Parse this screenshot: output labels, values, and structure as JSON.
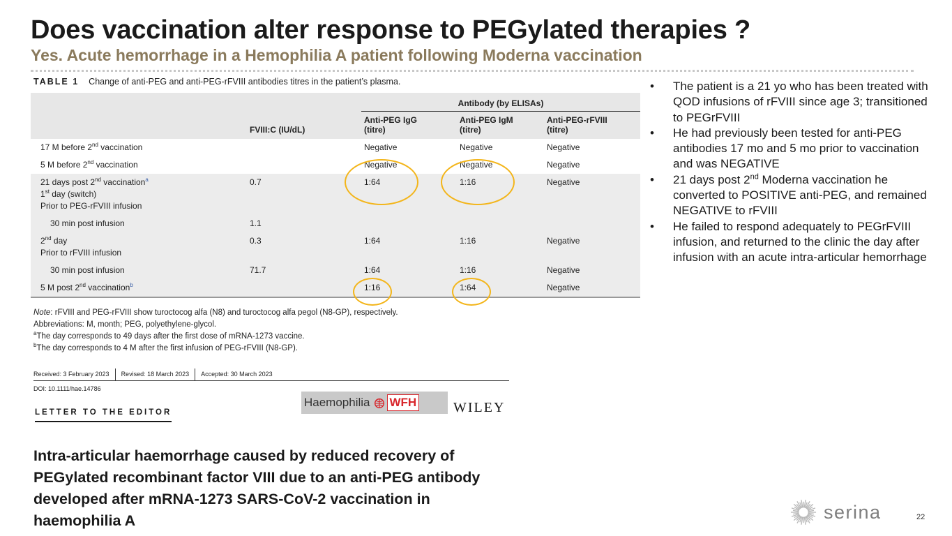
{
  "slide": {
    "title": "Does vaccination alter response to PEGylated therapies ?",
    "subtitle": "Yes. Acute hemorrhage in a Hemophilia A patient following Moderna vaccination",
    "page_number": "22"
  },
  "table": {
    "label": "TABLE 1",
    "caption": "Change of anti-PEG and anti-PEG-rFVIII antibodies titres in the patient’s plasma.",
    "antibody_group_header": "Antibody (by ELISAs)",
    "col_fviii": "FVIII:C (IU/dL)",
    "col_igg": [
      "Anti-PEG IgG",
      "(titre)"
    ],
    "col_igm": [
      "Anti-PEG IgM",
      "(titre)"
    ],
    "col_rfviii": [
      "Anti-PEG-rFVIII",
      "(titre)"
    ],
    "rows": [
      {
        "label": "17 M before 2nd vaccination",
        "fviii": "",
        "igg": "Negative",
        "igm": "Negative",
        "rfviii": "Negative"
      },
      {
        "label": "5 M before 2nd vaccination",
        "fviii": "",
        "igg": "Negative",
        "igm": "Negative",
        "rfviii": "Negative"
      },
      {
        "label_lines": [
          "21 days post 2nd vaccinationa",
          "1st day (switch)",
          "Prior to PEG-rFVIII infusion"
        ],
        "fviii": "0.7",
        "igg": "1:64",
        "igm": "1:16",
        "rfviii": "Negative"
      },
      {
        "label": "30 min post infusion",
        "fviii": "1.1",
        "igg": "",
        "igm": "",
        "rfviii": ""
      },
      {
        "label_lines": [
          "2nd day",
          "Prior to rFVIII infusion"
        ],
        "fviii": "0.3",
        "igg": "1:64",
        "igm": "1:16",
        "rfviii": "Negative"
      },
      {
        "label": "30 min post infusion",
        "fviii": "71.7",
        "igg": "1:64",
        "igm": "1:16",
        "rfviii": "Negative"
      },
      {
        "label": "5 M post 2nd vaccinationb",
        "fviii": "",
        "igg": "1:16",
        "igm": "1:64",
        "rfviii": "Negative"
      }
    ],
    "notes": [
      "Note: rFVIII and PEG-rFVIII show turoctocog alfa (N8) and turoctocog alfa pegol (N8-GP), respectively.",
      "Abbreviations: M, month; PEG, polyethylene-glycol.",
      "aThe day corresponds to 49 days after the first dose of mRNA-1273 vaccine.",
      "bThe day corresponds to 4 M after the first infusion of PEG-rFVIII (N8-GP)."
    ]
  },
  "article": {
    "received": "Received: 3 February 2023",
    "revised": "Revised: 18 March 2023",
    "accepted": "Accepted: 30 March 2023",
    "doi": "DOI: 10.1111/hae.14786",
    "section_label": "LETTER TO THE EDITOR",
    "journal_name": "Haemophilia",
    "wfh_text": "WFH",
    "publisher": "WILEY",
    "title": "Intra-articular haemorrhage caused by reduced recovery of PEGylated recombinant factor VIII due to an anti-PEG antibody developed after mRNA-1273 SARS-CoV-2 vaccination in haemophilia A"
  },
  "bullets": [
    "The patient is a 21 yo who has been treated with QOD infusions of rFVIII since age 3; transitioned to PEGrFVIII",
    "He had previously been tested for anti-PEG antibodies 17 mo and 5 mo prior to vaccination and was NEGATIVE",
    [
      "21 days post 2",
      "nd",
      " Moderna vaccination he converted to POSITIVE anti-PEG, and remained NEGATIVE to rFVIII"
    ],
    "He failed to respond adequately to PEGrFVIII infusion, and returned to the clinic the day after infusion with an acute intra-articular hemorrhage"
  ],
  "brand": {
    "name": "serina",
    "highlight_color": "#f3b51a",
    "subtitle_color": "#8a7a5c"
  },
  "icons": [
    "wfh-globe-icon",
    "serina-sunburst-icon"
  ]
}
